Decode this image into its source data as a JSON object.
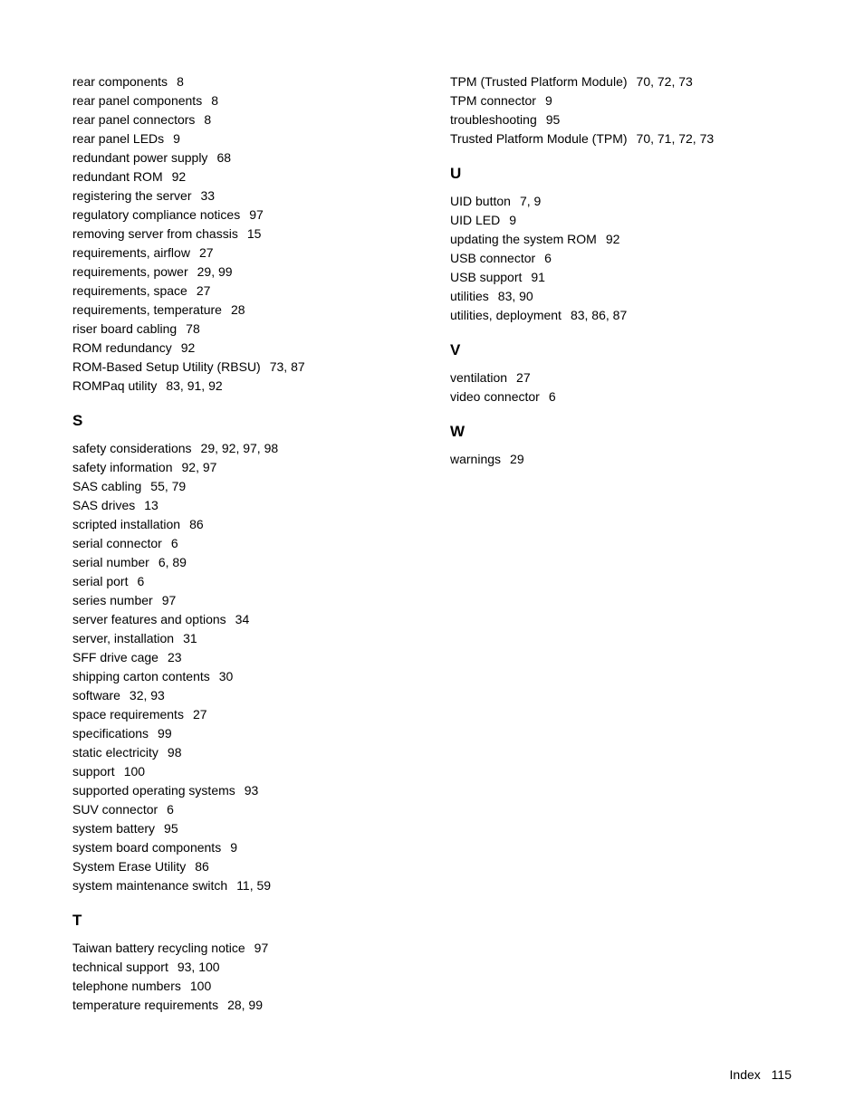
{
  "layout": {
    "background_color": "#ffffff",
    "text_color": "#000000",
    "entry_fontsize": 14,
    "heading_fontsize": 17,
    "heading_fontweight": "bold",
    "line_height": 1.5
  },
  "left": {
    "pre": [
      {
        "term": "rear components",
        "pages": "8"
      },
      {
        "term": "rear panel components",
        "pages": "8"
      },
      {
        "term": "rear panel connectors",
        "pages": "8"
      },
      {
        "term": "rear panel LEDs",
        "pages": "9"
      },
      {
        "term": "redundant power supply",
        "pages": "68"
      },
      {
        "term": "redundant ROM",
        "pages": "92"
      },
      {
        "term": "registering the server",
        "pages": "33"
      },
      {
        "term": "regulatory compliance notices",
        "pages": "97"
      },
      {
        "term": "removing server from chassis",
        "pages": "15"
      },
      {
        "term": "requirements, airflow",
        "pages": "27"
      },
      {
        "term": "requirements, power",
        "pages": "29, 99"
      },
      {
        "term": "requirements, space",
        "pages": "27"
      },
      {
        "term": "requirements, temperature",
        "pages": "28"
      },
      {
        "term": "riser board cabling",
        "pages": "78"
      },
      {
        "term": "ROM redundancy",
        "pages": "92"
      },
      {
        "term": "ROM-Based Setup Utility (RBSU)",
        "pages": "73, 87"
      },
      {
        "term": "ROMPaq utility",
        "pages": "83, 91, 92"
      }
    ],
    "sections": [
      {
        "letter": "S",
        "entries": [
          {
            "term": "safety considerations",
            "pages": "29, 92, 97, 98"
          },
          {
            "term": "safety information",
            "pages": "92, 97"
          },
          {
            "term": "SAS cabling",
            "pages": "55, 79"
          },
          {
            "term": "SAS drives",
            "pages": "13"
          },
          {
            "term": "scripted installation",
            "pages": "86"
          },
          {
            "term": "serial connector",
            "pages": "6"
          },
          {
            "term": "serial number",
            "pages": "6, 89"
          },
          {
            "term": "serial port",
            "pages": "6"
          },
          {
            "term": "series number",
            "pages": "97"
          },
          {
            "term": "server features and options",
            "pages": "34"
          },
          {
            "term": "server, installation",
            "pages": "31"
          },
          {
            "term": "SFF drive cage",
            "pages": "23"
          },
          {
            "term": "shipping carton contents",
            "pages": "30"
          },
          {
            "term": "software",
            "pages": "32, 93"
          },
          {
            "term": "space requirements",
            "pages": "27"
          },
          {
            "term": "specifications",
            "pages": "99"
          },
          {
            "term": "static electricity",
            "pages": "98"
          },
          {
            "term": "support",
            "pages": "100"
          },
          {
            "term": "supported operating systems",
            "pages": "93"
          },
          {
            "term": "SUV connector",
            "pages": "6"
          },
          {
            "term": "system battery",
            "pages": "95"
          },
          {
            "term": "system board components",
            "pages": "9"
          },
          {
            "term": "System Erase Utility",
            "pages": "86"
          },
          {
            "term": "system maintenance switch",
            "pages": "11, 59"
          }
        ]
      },
      {
        "letter": "T",
        "entries": [
          {
            "term": "Taiwan battery recycling notice",
            "pages": "97"
          },
          {
            "term": "technical support",
            "pages": "93, 100"
          },
          {
            "term": "telephone numbers",
            "pages": "100"
          },
          {
            "term": "temperature requirements",
            "pages": "28, 99"
          }
        ]
      }
    ]
  },
  "right": {
    "pre": [
      {
        "term": "TPM (Trusted Platform Module)",
        "pages": "70, 72, 73"
      },
      {
        "term": "TPM connector",
        "pages": "9"
      },
      {
        "term": "troubleshooting",
        "pages": "95"
      },
      {
        "term": "Trusted Platform Module (TPM)",
        "pages": "70, 71, 72, 73"
      }
    ],
    "sections": [
      {
        "letter": "U",
        "entries": [
          {
            "term": "UID button",
            "pages": "7, 9"
          },
          {
            "term": "UID LED",
            "pages": "9"
          },
          {
            "term": "updating the system ROM",
            "pages": "92"
          },
          {
            "term": "USB connector",
            "pages": "6"
          },
          {
            "term": "USB support",
            "pages": "91"
          },
          {
            "term": "utilities",
            "pages": "83, 90"
          },
          {
            "term": "utilities, deployment",
            "pages": "83, 86, 87"
          }
        ]
      },
      {
        "letter": "V",
        "entries": [
          {
            "term": "ventilation",
            "pages": "27"
          },
          {
            "term": "video connector",
            "pages": "6"
          }
        ]
      },
      {
        "letter": "W",
        "entries": [
          {
            "term": "warnings",
            "pages": "29"
          }
        ]
      }
    ]
  },
  "footer": {
    "label": "Index",
    "page_number": "115"
  }
}
